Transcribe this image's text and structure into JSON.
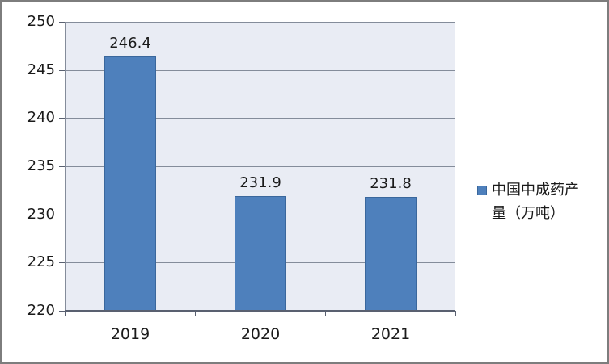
{
  "chart_data": {
    "type": "bar",
    "title": "",
    "xlabel": "",
    "ylabel": "",
    "categories": [
      "2019",
      "2020",
      "2021"
    ],
    "series": [
      {
        "name": "中国中成药产量（万吨）",
        "values": [
          246.4,
          231.9,
          231.8
        ]
      }
    ],
    "data_labels": [
      "246.4",
      "231.9",
      "231.8"
    ],
    "ylim": [
      220,
      250
    ],
    "ytick_step": 5,
    "yticks": [
      220,
      225,
      230,
      235,
      240,
      245,
      250
    ],
    "grid": "horizontal",
    "legend_position": "right",
    "colors": {
      "bar_fill": "#4e80bc",
      "bar_border": "#3a679c",
      "plot_background": "#e9ecf4",
      "gridline": "#848c9a",
      "axis_line": "#596070",
      "text": "#1a1a1a",
      "frame_border": "#7d7d7d"
    }
  },
  "legend": {
    "lines": [
      "中国中成药产",
      "量（万吨）"
    ]
  }
}
